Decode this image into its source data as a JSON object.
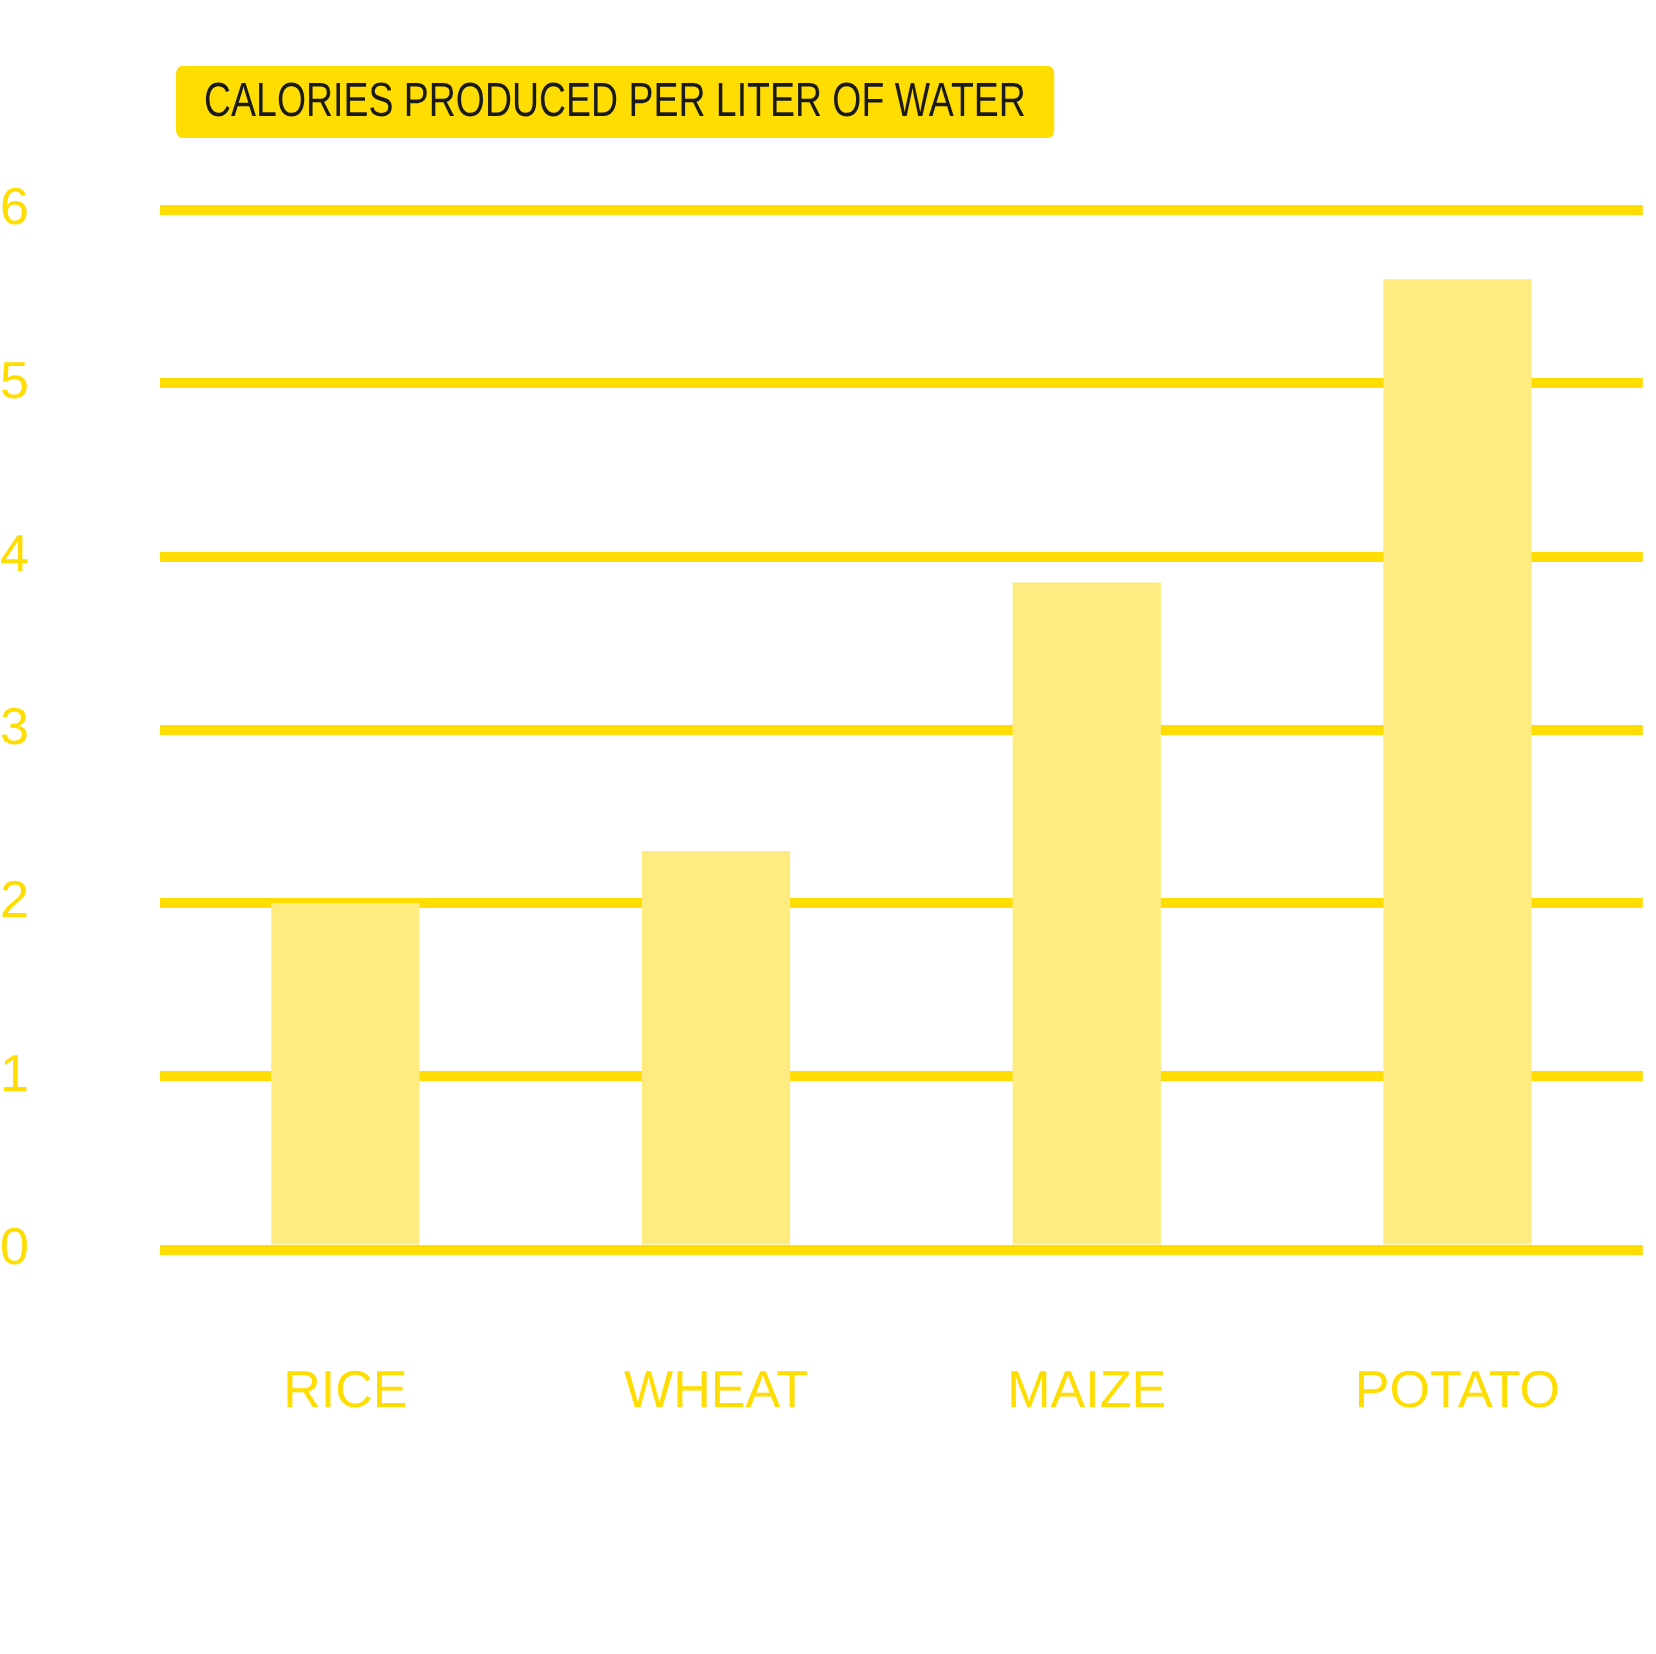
{
  "chart_data": {
    "type": "bar",
    "title": "CALORIES PRODUCED PER LITER OF WATER",
    "categories": [
      "RICE",
      "WHEAT",
      "MAIZE",
      "POTATO"
    ],
    "values": [
      2.0,
      2.3,
      3.85,
      5.6
    ],
    "color": "#ffec80",
    "ylim": [
      0,
      6
    ],
    "yticks": [
      0,
      1,
      2,
      3,
      4,
      5,
      6
    ],
    "grid": "y",
    "legend": false
  }
}
